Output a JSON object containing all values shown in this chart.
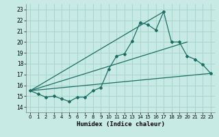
{
  "title": "",
  "xlabel": "Humidex (Indice chaleur)",
  "ylabel": "",
  "bg_color": "#c8eae4",
  "grid_color": "#a8d4ce",
  "line_color": "#1a6e64",
  "xlim": [
    -0.5,
    23.5
  ],
  "ylim": [
    13.5,
    23.5
  ],
  "yticks": [
    14,
    15,
    16,
    17,
    18,
    19,
    20,
    21,
    22,
    23
  ],
  "xticks": [
    0,
    1,
    2,
    3,
    4,
    5,
    6,
    7,
    8,
    9,
    10,
    11,
    12,
    13,
    14,
    15,
    16,
    17,
    18,
    19,
    20,
    21,
    22,
    23
  ],
  "main_series": [
    [
      0,
      15.5
    ],
    [
      1,
      15.2
    ],
    [
      2,
      14.9
    ],
    [
      3,
      15.0
    ],
    [
      4,
      14.75
    ],
    [
      5,
      14.5
    ],
    [
      6,
      14.9
    ],
    [
      7,
      14.9
    ],
    [
      8,
      15.5
    ],
    [
      9,
      15.8
    ],
    [
      10,
      17.5
    ],
    [
      11,
      18.7
    ],
    [
      12,
      18.9
    ],
    [
      13,
      20.1
    ],
    [
      14,
      21.8
    ],
    [
      15,
      21.6
    ],
    [
      16,
      21.1
    ],
    [
      17,
      22.8
    ],
    [
      18,
      20.0
    ],
    [
      19,
      20.0
    ],
    [
      20,
      18.7
    ],
    [
      21,
      18.4
    ],
    [
      22,
      17.9
    ],
    [
      23,
      17.1
    ]
  ],
  "trend_line1": [
    [
      0,
      15.5
    ],
    [
      23,
      17.1
    ]
  ],
  "trend_line2": [
    [
      0,
      15.5
    ],
    [
      20,
      20.0
    ]
  ],
  "trend_line3": [
    [
      0,
      15.5
    ],
    [
      17,
      22.8
    ]
  ]
}
